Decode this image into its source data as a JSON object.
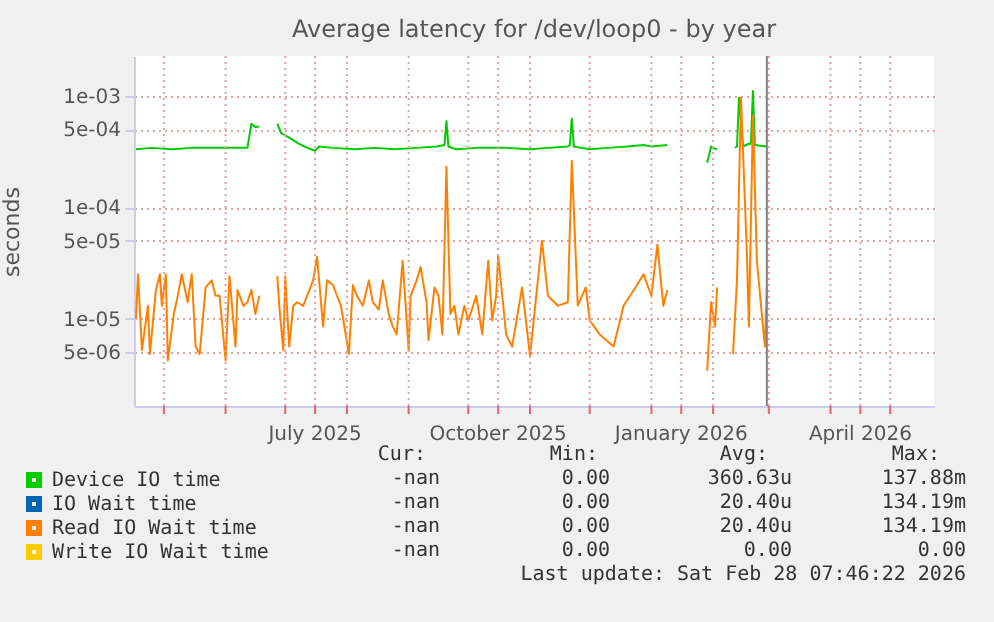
{
  "chart_data": {
    "type": "line",
    "title": "Average latency for /dev/loop0 - by year",
    "ylabel": "seconds",
    "log": "y",
    "grid": true,
    "legend": "bottom left",
    "xlim": [
      "2025-04-16",
      "2026-05-23"
    ],
    "xticks": [
      {
        "value": "2025-05-01",
        "label": null
      },
      {
        "value": "2025-06-01",
        "label": null
      },
      {
        "value": "2025-07-01",
        "label": null
      },
      {
        "value": "2025-07-16",
        "label": "July 2025"
      },
      {
        "value": "2025-08-01",
        "label": null
      },
      {
        "value": "2025-09-01",
        "label": null
      },
      {
        "value": "2025-10-01",
        "label": null
      },
      {
        "value": "2025-10-16",
        "label": "October 2025"
      },
      {
        "value": "2025-11-01",
        "label": null
      },
      {
        "value": "2025-12-01",
        "label": null
      },
      {
        "value": "2026-01-01",
        "label": null
      },
      {
        "value": "2026-01-16",
        "label": "January 2026"
      },
      {
        "value": "2026-02-01",
        "label": null
      },
      {
        "value": "2026-03-01",
        "label": null
      },
      {
        "value": "2026-04-01",
        "label": null
      },
      {
        "value": "2026-04-16",
        "label": "April 2026"
      },
      {
        "value": "2026-05-01",
        "label": null
      }
    ],
    "ylim": [
      1.64e-06,
      0.00227
    ],
    "yticks": [
      {
        "value": 5e-06,
        "label": "5e-06"
      },
      {
        "value": 1e-05,
        "label": "1e-05"
      },
      {
        "value": 5e-05,
        "label": "5e-05"
      },
      {
        "value": 0.0001,
        "label": "1e-04"
      },
      {
        "value": 0.0005,
        "label": "5e-04"
      },
      {
        "value": 0.001,
        "label": "1e-03"
      }
    ],
    "ref_lines": [
      {
        "axis": "x",
        "value": "2026-02-28",
        "color": "#808080"
      }
    ],
    "series": [
      {
        "name": "Device IO time",
        "color": "#00cc00",
        "x": [
          "2025-04-17",
          "2025-04-25",
          "2025-05-05",
          "2025-05-15",
          "2025-05-25",
          "2025-06-05",
          "2025-06-12",
          "2025-06-14",
          "2025-06-16",
          "2025-06-18",
          "2025-06-21",
          "2025-06-27",
          "2025-06-29",
          "2025-07-03",
          "2025-07-08",
          "2025-07-12",
          "2025-07-16",
          "2025-07-18",
          "2025-07-25",
          "2025-08-05",
          "2025-08-15",
          "2025-08-25",
          "2025-09-05",
          "2025-09-15",
          "2025-09-19",
          "2025-09-20",
          "2025-09-21",
          "2025-09-25",
          "2025-10-05",
          "2025-10-20",
          "2025-11-01",
          "2025-11-10",
          "2025-11-20",
          "2025-11-21",
          "2025-11-22",
          "2025-11-23",
          "2025-12-01",
          "2025-12-10",
          "2025-12-20",
          "2025-12-28",
          "2026-01-01",
          "2026-01-09",
          "2026-01-15",
          "2026-01-29",
          "2026-01-31",
          "2026-02-01",
          "2026-02-03",
          "2026-02-06",
          "2026-02-12",
          "2026-02-13",
          "2026-02-14",
          "2026-02-16",
          "2026-02-19",
          "2026-02-20",
          "2026-02-21",
          "2026-02-22",
          "2026-02-28"
        ],
        "values": [
          0.00033,
          0.00034,
          0.00033,
          0.00034,
          0.00034,
          0.00034,
          0.00034,
          0.00056,
          0.00052,
          0.00053,
          null,
          0.00056,
          0.00046,
          0.00042,
          0.00037,
          0.00034,
          0.00032,
          0.00035,
          0.00034,
          0.00033,
          0.00034,
          0.00033,
          0.00034,
          0.00035,
          0.00036,
          0.00059,
          0.00035,
          0.00033,
          0.00034,
          0.00034,
          0.00033,
          0.00034,
          0.00035,
          0.00036,
          0.00062,
          0.00035,
          0.00033,
          0.00034,
          0.00035,
          0.00036,
          0.00035,
          0.00036,
          null,
          0.00025,
          0.00035,
          0.00034,
          0.00033,
          null,
          0.00034,
          0.00035,
          0.00096,
          0.00035,
          0.00037,
          0.00037,
          0.0011,
          0.00036,
          0.00035
        ]
      },
      {
        "name": "IO Wait time",
        "color": "#0066b3"
      },
      {
        "name": "Read IO Wait time",
        "color": "#ff8000",
        "x": [
          "2025-04-17",
          "2025-04-18",
          "2025-04-20",
          "2025-04-23",
          "2025-04-24",
          "2025-04-27",
          "2025-04-29",
          "2025-04-30",
          "2025-05-02",
          "2025-05-03",
          "2025-05-06",
          "2025-05-08",
          "2025-05-10",
          "2025-05-13",
          "2025-05-15",
          "2025-05-17",
          "2025-05-19",
          "2025-05-22",
          "2025-05-25",
          "2025-05-27",
          "2025-05-29",
          "2025-06-01",
          "2025-06-03",
          "2025-06-06",
          "2025-06-07",
          "2025-06-10",
          "2025-06-12",
          "2025-06-14",
          "2025-06-16",
          "2025-06-18",
          "2025-06-21",
          "2025-06-27",
          "2025-06-28",
          "2025-06-30",
          "2025-07-01",
          "2025-07-03",
          "2025-07-05",
          "2025-07-07",
          "2025-07-10",
          "2025-07-12",
          "2025-07-15",
          "2025-07-17",
          "2025-07-20",
          "2025-07-22",
          "2025-07-25",
          "2025-07-27",
          "2025-07-29",
          "2025-08-02",
          "2025-08-04",
          "2025-08-06",
          "2025-08-09",
          "2025-08-12",
          "2025-08-14",
          "2025-08-17",
          "2025-08-19",
          "2025-08-22",
          "2025-08-24",
          "2025-08-26",
          "2025-08-29",
          "2025-09-01",
          "2025-09-02",
          "2025-09-05",
          "2025-09-07",
          "2025-09-10",
          "2025-09-11",
          "2025-09-14",
          "2025-09-16",
          "2025-09-18",
          "2025-09-20",
          "2025-09-22",
          "2025-09-24",
          "2025-09-26",
          "2025-09-29",
          "2025-10-01",
          "2025-10-05",
          "2025-10-08",
          "2025-10-11",
          "2025-10-13",
          "2025-10-15",
          "2025-10-16",
          "2025-10-20",
          "2025-10-23",
          "2025-10-28",
          "2025-11-01",
          "2025-11-07",
          "2025-11-10",
          "2025-11-15",
          "2025-11-20",
          "2025-11-22",
          "2025-11-25",
          "2025-11-29",
          "2025-12-01",
          "2025-12-06",
          "2025-12-13",
          "2025-12-18",
          "2025-12-24",
          "2025-12-28",
          "2026-01-01",
          "2026-01-04",
          "2026-01-07",
          "2026-01-09",
          "2026-01-15",
          "2026-01-29",
          "2026-01-31",
          "2026-02-02",
          "2026-02-03",
          "2026-02-05",
          "2026-02-11",
          "2026-02-13",
          "2026-02-15",
          "2026-02-18",
          "2026-02-19",
          "2026-02-21",
          "2026-02-23",
          "2026-02-27",
          "2026-02-28"
        ],
        "values": [
          1e-05,
          2.5e-05,
          5.2e-06,
          1.3e-05,
          4.8e-06,
          1.8e-05,
          2.5e-05,
          1.3e-05,
          2.5e-05,
          4.2e-06,
          1.1e-05,
          1.6e-05,
          2.5e-05,
          1.4e-05,
          2.5e-05,
          5.6e-06,
          4.8e-06,
          1.9e-05,
          2.2e-05,
          1.6e-05,
          1.6e-05,
          4.2e-06,
          2.4e-05,
          5.6e-06,
          1.8e-05,
          1.3e-05,
          1.4e-05,
          1.8e-05,
          1.1e-05,
          1.6e-05,
          null,
          2.4e-05,
          1.3e-05,
          5.2e-06,
          2.4e-05,
          5.6e-06,
          1.3e-05,
          1.4e-05,
          1.3e-05,
          1.6e-05,
          2.2e-05,
          3.6e-05,
          8.5e-06,
          2.2e-05,
          2e-05,
          1.6e-05,
          1.3e-05,
          4.8e-06,
          2e-05,
          1.6e-05,
          1.3e-05,
          2.2e-05,
          1.4e-05,
          1.2e-05,
          2.2e-05,
          1.1e-05,
          8.5e-06,
          7.2e-06,
          3.3e-05,
          5.2e-06,
          1.6e-05,
          2.2e-05,
          2.9e-05,
          1.4e-05,
          6.4e-06,
          1.9e-05,
          1.6e-05,
          7.2e-06,
          0.00023,
          1.1e-05,
          1.3e-05,
          7.2e-06,
          1.3e-05,
          9.6e-06,
          1.6e-05,
          7.2e-06,
          3.3e-05,
          9.6e-06,
          1.6e-05,
          3.7e-05,
          7.2e-06,
          5.6e-06,
          1.9e-05,
          4.6e-06,
          5e-05,
          1.6e-05,
          1.3e-05,
          1.4e-05,
          0.00026,
          1.3e-05,
          1.9e-05,
          9.6e-06,
          7.2e-06,
          5.6e-06,
          1.3e-05,
          1.9e-05,
          2.5e-05,
          1.6e-05,
          4.6e-05,
          1.3e-05,
          1.8e-05,
          null,
          3.4e-06,
          1.4e-05,
          8.5e-06,
          1.9e-05,
          null,
          4.8e-06,
          2.2e-05,
          0.00096,
          3.7e-05,
          8.5e-06,
          0.00066,
          3.3e-05,
          5.6e-06,
          1.9e-05
        ]
      },
      {
        "name": "Write IO Wait time",
        "color": "#ffcc00"
      }
    ],
    "annotations": [
      "Cur:",
      "Min:",
      "Avg:",
      "Max:",
      "-nan",
      "0.00",
      "360.63u",
      "137.88m",
      "-nan",
      "0.00",
      "20.40u",
      "134.19m",
      "-nan",
      "0.00",
      "20.40u",
      "134.19m",
      "-nan",
      "0.00",
      "0.00",
      "0.00",
      "Last update: Sat Feb 28 07:46:22 2026"
    ]
  }
}
